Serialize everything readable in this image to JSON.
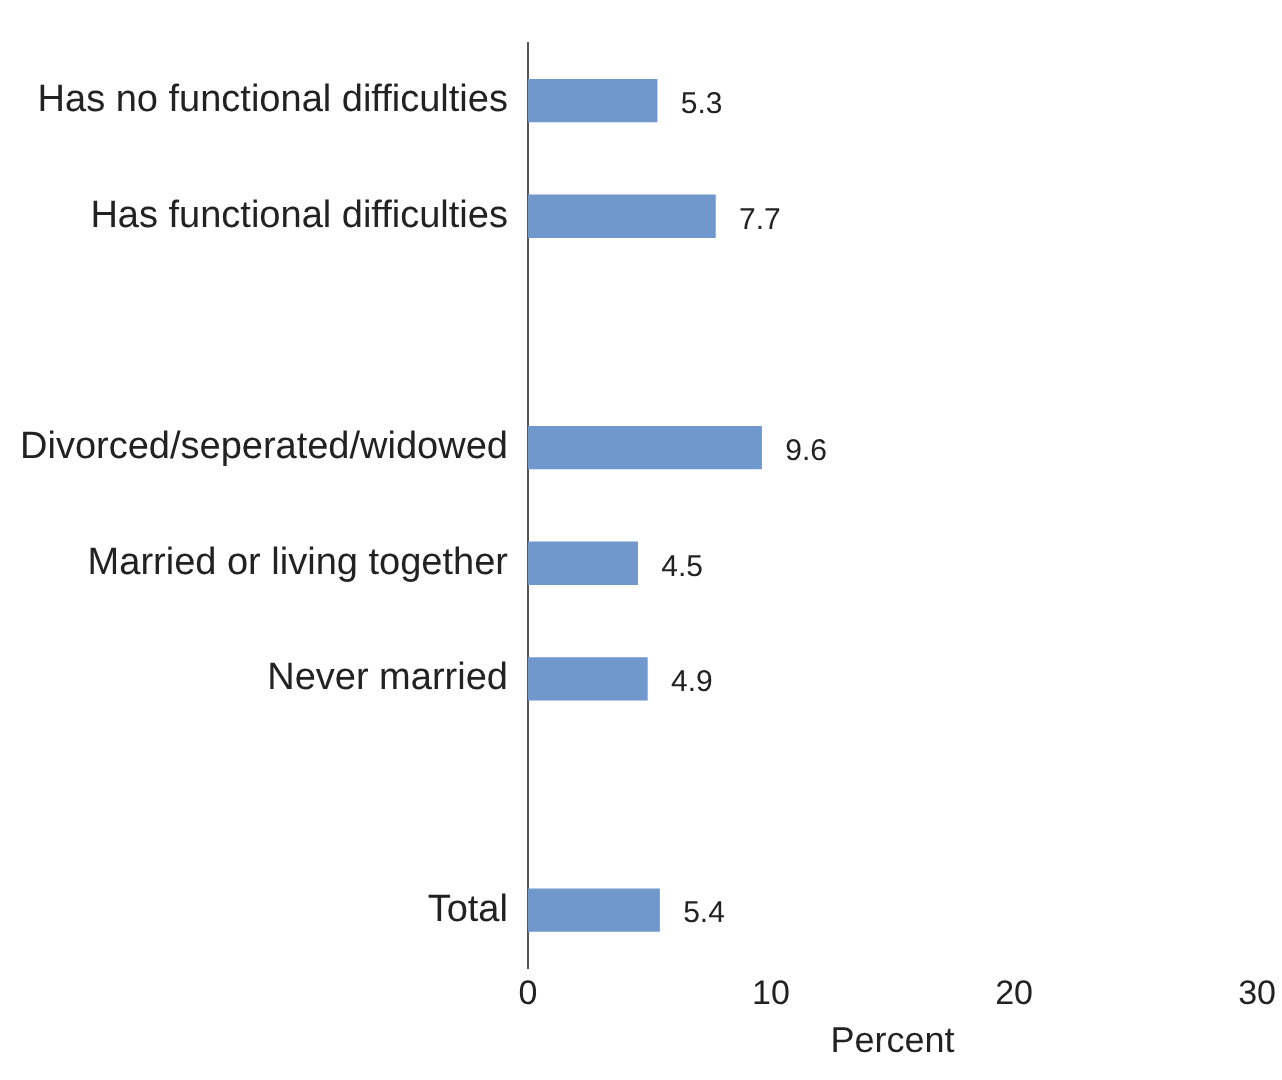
{
  "chart_data": {
    "type": "bar",
    "orientation": "horizontal",
    "categories": [
      "Has no functional difficulties",
      "Has functional difficulties",
      null,
      "Divorced/seperated/widowed",
      "Married or living together",
      "Never married",
      null,
      "Total"
    ],
    "values": [
      5.3,
      7.7,
      null,
      9.6,
      4.5,
      4.9,
      null,
      5.4
    ],
    "color": "#7098cc",
    "xlim": [
      0,
      30
    ],
    "xticks": [
      0,
      10,
      20,
      30
    ],
    "xlabel": "Percent",
    "data_labels": true,
    "grid": false,
    "legend": false
  }
}
